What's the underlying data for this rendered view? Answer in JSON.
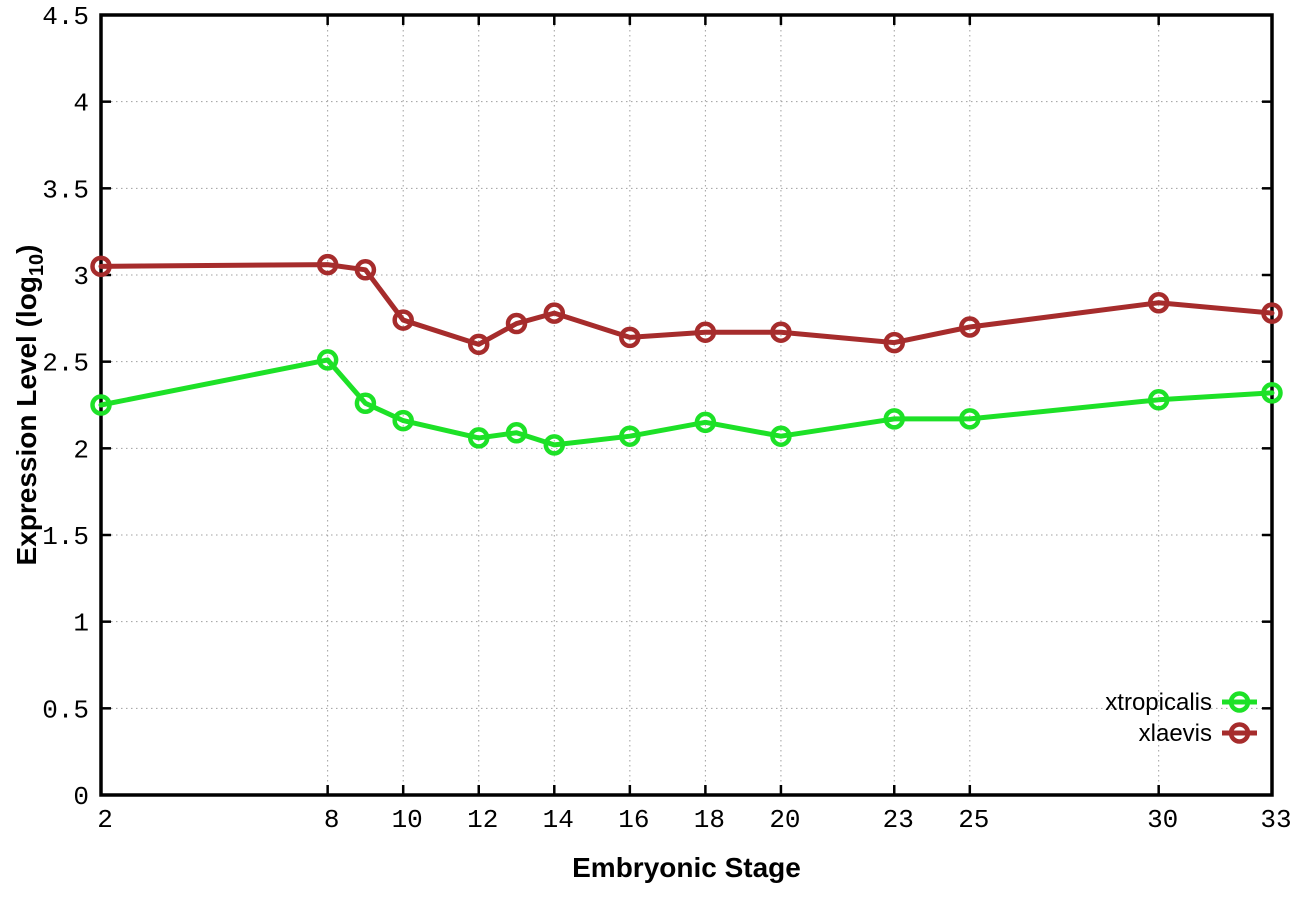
{
  "chart_data": {
    "type": "line",
    "title": "",
    "xlabel": "Embryonic Stage",
    "ylabel": "Expression Level (log10)",
    "ylabel_parts": {
      "pre": "Expression Level (log",
      "sub": "10",
      "post": ")"
    },
    "xlim": [
      2,
      33
    ],
    "ylim": [
      0,
      4.5
    ],
    "x_ticks": [
      2,
      8,
      10,
      12,
      14,
      16,
      18,
      20,
      23,
      25,
      30,
      33
    ],
    "y_ticks": [
      0,
      0.5,
      1,
      1.5,
      2,
      2.5,
      3,
      3.5,
      4,
      4.5
    ],
    "grid": true,
    "legend_position": "bottom-right",
    "x": [
      2,
      8,
      9,
      10,
      12,
      13,
      14,
      16,
      18,
      20,
      23,
      25,
      30,
      33
    ],
    "series": [
      {
        "name": "xtropicalis",
        "color": "#1de127",
        "values": [
          2.25,
          2.51,
          2.26,
          2.16,
          2.06,
          2.09,
          2.02,
          2.07,
          2.15,
          2.07,
          2.17,
          2.17,
          2.28,
          2.32
        ]
      },
      {
        "name": "xlaevis",
        "color": "#a62c2c",
        "values": [
          3.05,
          3.06,
          3.03,
          2.74,
          2.6,
          2.72,
          2.78,
          2.64,
          2.67,
          2.67,
          2.61,
          2.7,
          2.84,
          2.78
        ]
      }
    ],
    "colors": {
      "axis": "#000000",
      "grid": "#9f9f9f",
      "text": "#000000",
      "background": "#ffffff"
    }
  }
}
